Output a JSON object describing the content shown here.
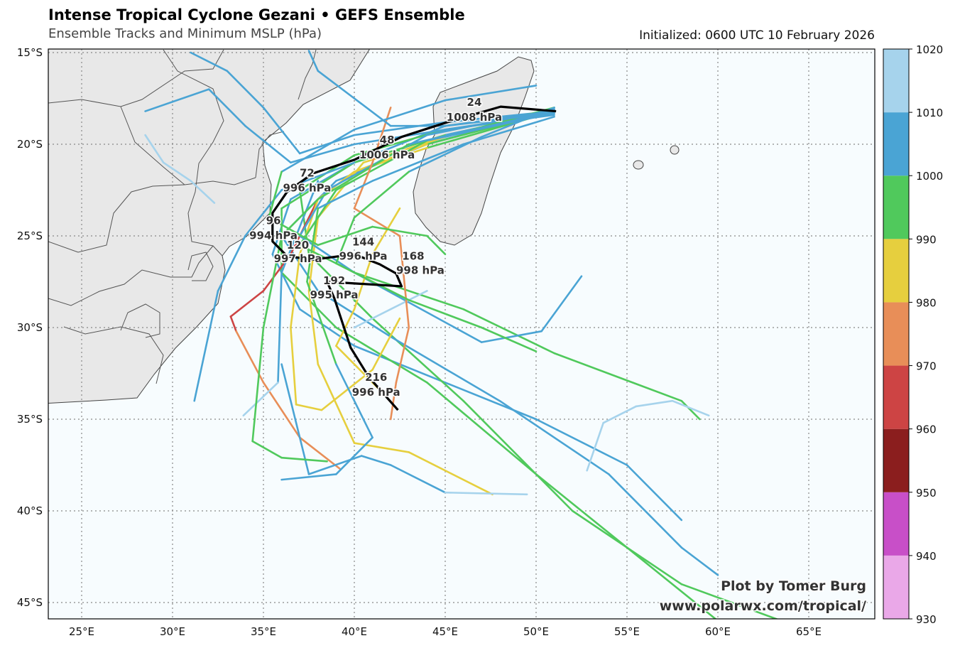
{
  "header": {
    "title": "Intense Tropical Cyclone Gezani • GEFS Ensemble",
    "subtitle": "Ensemble Tracks and Minimum MSLP (hPa)",
    "initialized": "Initialized: 0600 UTC 10 February 2026"
  },
  "credit": {
    "line1": "Plot by Tomer Burg",
    "line2": "www.polarwx.com/tropical/"
  },
  "chart_data": {
    "type": "map-tracks",
    "lon_range": [
      23.2,
      68.6
    ],
    "lat_range": [
      -45.9,
      -14.8
    ],
    "grid": true,
    "lon_ticks": [
      {
        "v": 25,
        "label": "25°E"
      },
      {
        "v": 30,
        "label": "30°E"
      },
      {
        "v": 35,
        "label": "35°E"
      },
      {
        "v": 40,
        "label": "40°E"
      },
      {
        "v": 45,
        "label": "45°E"
      },
      {
        "v": 50,
        "label": "50°E"
      },
      {
        "v": 55,
        "label": "55°E"
      },
      {
        "v": 60,
        "label": "60°E"
      },
      {
        "v": 65,
        "label": "65°E"
      }
    ],
    "lat_ticks": [
      {
        "v": -15,
        "label": "15°S"
      },
      {
        "v": -20,
        "label": "20°S"
      },
      {
        "v": -25,
        "label": "25°S"
      },
      {
        "v": -30,
        "label": "30°S"
      },
      {
        "v": -35,
        "label": "35°S"
      },
      {
        "v": -40,
        "label": "40°S"
      },
      {
        "v": -45,
        "label": "45°S"
      }
    ],
    "colorbar": {
      "bounds": [
        930,
        940,
        950,
        960,
        970,
        980,
        990,
        1000,
        1010,
        1020
      ],
      "labels": [
        "930",
        "940",
        "950",
        "960",
        "970",
        "980",
        "990",
        "1000",
        "1010",
        "1020"
      ],
      "colors": [
        "#eaa8e8",
        "#c84fc8",
        "#8b1e1e",
        "#cd4444",
        "#e88e58",
        "#e6cf3e",
        "#50c95c",
        "#4aa4d4",
        "#a6d3ec"
      ]
    },
    "land_color": "#e8e8e8",
    "ocean_color": "#f7fcfe",
    "mean_track": {
      "color": "#000000",
      "points": [
        [
          51.1,
          -18.2
        ],
        [
          48.05,
          -17.95
        ],
        [
          45.1,
          -18.8
        ],
        [
          42.6,
          -19.6
        ],
        [
          40.0,
          -20.85
        ],
        [
          37.7,
          -21.6
        ],
        [
          36.3,
          -22.6
        ],
        [
          35.5,
          -23.75
        ],
        [
          35.5,
          -25.3
        ],
        [
          36.3,
          -26.1
        ],
        [
          37.7,
          -26.3
        ],
        [
          40.0,
          -26.0
        ],
        [
          41.4,
          -26.55
        ],
        [
          42.3,
          -27.05
        ],
        [
          42.6,
          -27.75
        ],
        [
          38.5,
          -27.5
        ],
        [
          38.9,
          -28.4
        ],
        [
          39.8,
          -31.1
        ],
        [
          40.8,
          -32.7
        ],
        [
          42.4,
          -34.5
        ]
      ],
      "labels": [
        {
          "hour": "24",
          "mslp": "1008 hPa",
          "lon": 46.6,
          "lat": -18.1
        },
        {
          "hour": "48",
          "mslp": "1006 hPa",
          "lon": 41.8,
          "lat": -20.15
        },
        {
          "hour": "72",
          "mslp": "996 hPa",
          "lon": 37.4,
          "lat": -21.95
        },
        {
          "hour": "96",
          "mslp": "994 hPa",
          "lon": 35.55,
          "lat": -24.55
        },
        {
          "hour": "120",
          "mslp": "997 hPa",
          "lon": 37.6,
          "lat": -26.05
        },
        {
          "hour": "144",
          "mslp": "996 hPa",
          "lon": 41.0,
          "lat": -26.3
        },
        {
          "hour": "168",
          "mslp": "998 hPa",
          "lon": 41.6,
          "lat": -26.45
        },
        {
          "hour": "192",
          "mslp": "995 hPa",
          "lon": 38.5,
          "lat": -27.25
        },
        {
          "hour": "216",
          "mslp": "996 hPa",
          "lon": 41.2,
          "lat": -33.1
        }
      ]
    },
    "ensemble_tracks": [
      [
        [
          51,
          -18.2,
          1005
        ],
        [
          45,
          -19,
          1004
        ],
        [
          40,
          -21,
          1002
        ],
        [
          36.5,
          -23,
          1001
        ],
        [
          35.5,
          -26,
          1002
        ],
        [
          37,
          -29,
          1003
        ],
        [
          40,
          -31,
          1004
        ],
        [
          45,
          -33,
          1005
        ],
        [
          50,
          -35,
          1006
        ],
        [
          55,
          -37.5,
          1006
        ],
        [
          58,
          -40.5,
          1007
        ]
      ],
      [
        [
          51,
          -18.2,
          1004
        ],
        [
          45,
          -19.5,
          1001
        ],
        [
          40,
          -21,
          998
        ],
        [
          36,
          -23.5,
          996
        ],
        [
          36,
          -27,
          995
        ],
        [
          39,
          -30,
          997
        ],
        [
          44,
          -33,
          998
        ],
        [
          50,
          -38,
          999
        ],
        [
          55,
          -42,
          999
        ],
        [
          60,
          -46,
          999
        ]
      ],
      [
        [
          51,
          -18.3,
          1004
        ],
        [
          45,
          -19.2,
          1000
        ],
        [
          40,
          -20.6,
          996
        ],
        [
          37,
          -22.5,
          994
        ],
        [
          37.5,
          -26,
          995
        ],
        [
          41,
          -29.5,
          996
        ],
        [
          46,
          -34,
          997
        ],
        [
          52,
          -40,
          998
        ],
        [
          58,
          -44,
          998
        ],
        [
          63.5,
          -46,
          998
        ]
      ],
      [
        [
          51,
          -18.1,
          1005
        ],
        [
          44,
          -20,
          1003
        ],
        [
          39,
          -22,
          1002
        ],
        [
          36,
          -25,
          1002
        ],
        [
          38,
          -28,
          1003
        ],
        [
          42,
          -30.5,
          1004
        ],
        [
          48,
          -34,
          1005
        ],
        [
          54,
          -38,
          1005
        ],
        [
          58,
          -42,
          1006
        ],
        [
          60,
          -43.5,
          1006
        ]
      ],
      [
        [
          51,
          -18.2,
          1005
        ],
        [
          45,
          -18.8,
          1004
        ],
        [
          40,
          -19.5,
          1004
        ],
        [
          37,
          -20.5,
          1005
        ],
        [
          35,
          -18,
          1006
        ],
        [
          33,
          -16,
          1007
        ],
        [
          31,
          -15,
          1008
        ]
      ],
      [
        [
          51,
          -18.4,
          1005
        ],
        [
          45,
          -19.2,
          1004
        ],
        [
          40,
          -20,
          1004
        ],
        [
          36.5,
          -21,
          1005
        ],
        [
          34,
          -19,
          1006
        ],
        [
          32,
          -17,
          1007
        ],
        [
          28.5,
          -18.2,
          1008
        ]
      ],
      [
        [
          28.5,
          -19.5,
          1012
        ],
        [
          29.5,
          -21,
          1012
        ],
        [
          31,
          -22,
          1013
        ],
        [
          32.3,
          -23.2,
          1013
        ]
      ],
      [
        [
          51,
          -18.2,
          1002
        ],
        [
          44,
          -20,
          990
        ],
        [
          40,
          -21.5,
          975
        ],
        [
          38,
          -23,
          968
        ],
        [
          36.5,
          -26,
          965
        ],
        [
          35,
          -28,
          965
        ],
        [
          33.2,
          -29.4,
          966
        ],
        [
          33.5,
          -30.2,
          972
        ],
        [
          35,
          -33,
          976
        ],
        [
          37,
          -36,
          978
        ],
        [
          39.2,
          -37.7,
          978
        ]
      ],
      [
        [
          51,
          -18.2,
          1000
        ],
        [
          44,
          -20.2,
          990
        ],
        [
          40,
          -21.5,
          985
        ],
        [
          38,
          -23,
          983
        ],
        [
          37,
          -26,
          984
        ],
        [
          36.5,
          -30,
          986
        ],
        [
          36.8,
          -34.2,
          987
        ],
        [
          38.2,
          -34.5,
          988
        ],
        [
          41,
          -32.3,
          989
        ],
        [
          42.5,
          -29.5,
          989
        ]
      ],
      [
        [
          51,
          -18.0,
          1000
        ],
        [
          45,
          -19.6,
          992
        ],
        [
          40.5,
          -21,
          986
        ],
        [
          38,
          -24,
          984
        ],
        [
          37.5,
          -28,
          985
        ],
        [
          38,
          -32,
          986
        ],
        [
          40,
          -36.3,
          987
        ],
        [
          43,
          -36.8,
          988
        ],
        [
          47.6,
          -39.1,
          988
        ]
      ],
      [
        [
          51,
          -18.3,
          1003
        ],
        [
          44,
          -19.8,
          998
        ],
        [
          39,
          -22.5,
          996
        ],
        [
          37,
          -25.5,
          995
        ],
        [
          40,
          -27,
          996
        ],
        [
          46,
          -29,
          996
        ],
        [
          51,
          -31.4,
          997
        ],
        [
          58,
          -34,
          998
        ],
        [
          59,
          -35,
          999
        ]
      ],
      [
        [
          51,
          -18.1,
          1004
        ],
        [
          44,
          -19.5,
          1003
        ],
        [
          38.5,
          -22.5,
          1002
        ],
        [
          37,
          -25,
          1002
        ],
        [
          40,
          -27,
          1003
        ],
        [
          47,
          -30.8,
          1004
        ],
        [
          50.3,
          -30.2,
          1005
        ],
        [
          52.5,
          -27.2,
          1006
        ]
      ],
      [
        [
          40,
          -30,
          1011
        ],
        [
          42,
          -29,
          1012
        ],
        [
          44,
          -28,
          1013
        ]
      ],
      [
        [
          52.8,
          -37.8,
          1012
        ],
        [
          53.7,
          -35.2,
          1012
        ],
        [
          55.5,
          -34.3,
          1013
        ],
        [
          57.5,
          -34,
          1013
        ],
        [
          59.5,
          -34.8,
          1013
        ]
      ],
      [
        [
          38,
          -22,
          1004
        ],
        [
          36,
          -27,
          1005
        ],
        [
          35.8,
          -33,
          1010
        ],
        [
          33.9,
          -34.8,
          1012
        ]
      ],
      [
        [
          36,
          -32,
          1004
        ],
        [
          37.5,
          -38,
          1004
        ],
        [
          40.4,
          -37,
          1005
        ],
        [
          42,
          -37.5,
          1006
        ],
        [
          45,
          -39,
          1009
        ],
        [
          49.5,
          -39.1,
          1012
        ]
      ],
      [
        [
          51,
          -18.2,
          1003
        ],
        [
          43,
          -20,
          998
        ],
        [
          38,
          -23,
          996
        ],
        [
          36,
          -25,
          995
        ],
        [
          35,
          -30,
          996
        ],
        [
          34.4,
          -36.2,
          997
        ],
        [
          36,
          -37.1,
          998
        ],
        [
          38.5,
          -37.3,
          998
        ]
      ],
      [
        [
          40,
          -21,
          1004
        ],
        [
          36,
          -22.5,
          1005
        ],
        [
          34,
          -25,
          1005
        ],
        [
          32.5,
          -28,
          1006
        ],
        [
          31.2,
          -34,
          1007
        ]
      ],
      [
        [
          42,
          -18,
          978
        ],
        [
          41,
          -21,
          980
        ],
        [
          40,
          -23.5,
          978
        ],
        [
          42.5,
          -25,
          977
        ],
        [
          43,
          -30,
          978
        ],
        [
          42.3,
          -33,
          979
        ],
        [
          42,
          -35,
          980
        ]
      ],
      [
        [
          42.5,
          -23.5,
          988
        ],
        [
          41,
          -26,
          987
        ],
        [
          40,
          -29,
          988
        ],
        [
          39,
          -31,
          989
        ],
        [
          41.5,
          -33.5,
          990
        ]
      ],
      [
        [
          51,
          -18.5,
          1004
        ],
        [
          46,
          -20,
          1002
        ],
        [
          41,
          -22,
          1001
        ],
        [
          38,
          -23.5,
          1000
        ],
        [
          37.4,
          -27.5,
          999
        ],
        [
          39,
          -32,
          999
        ],
        [
          41,
          -36,
          1001
        ],
        [
          39,
          -38,
          1003
        ],
        [
          36,
          -38.3,
          1005
        ]
      ],
      [
        [
          51,
          -18.0,
          1004
        ],
        [
          47,
          -19.6,
          1001
        ],
        [
          43,
          -21.5,
          999
        ],
        [
          40,
          -24,
          997
        ],
        [
          39,
          -26.5,
          997
        ],
        [
          43,
          -28.5,
          998
        ],
        [
          47,
          -30,
          999
        ],
        [
          50,
          -31.3,
          999
        ]
      ],
      [
        [
          50,
          -16.8,
          1006
        ],
        [
          45,
          -17.6,
          1004
        ],
        [
          40,
          -19.2,
          1001
        ],
        [
          36,
          -21.5,
          999
        ],
        [
          35.3,
          -24,
          999
        ],
        [
          38,
          -25.5,
          999
        ],
        [
          41,
          -24.5,
          999
        ],
        [
          44,
          -25,
          999
        ],
        [
          45,
          -26,
          1000
        ]
      ],
      [
        [
          51,
          -18.3,
          1005
        ],
        [
          45,
          -19,
          1005
        ],
        [
          42,
          -19,
          1005
        ],
        [
          40,
          -17.5,
          1005
        ],
        [
          38,
          -16,
          1006
        ],
        [
          37.5,
          -14.9,
          1007
        ]
      ]
    ]
  }
}
